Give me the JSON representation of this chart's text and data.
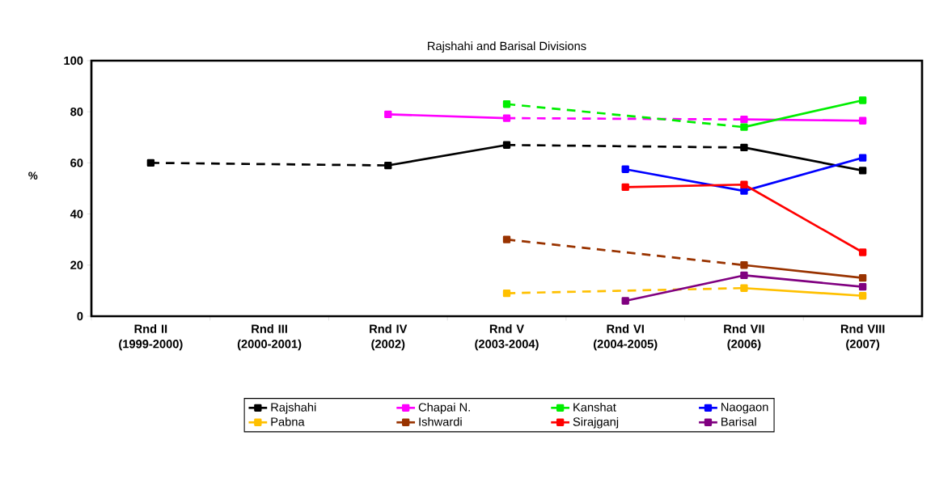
{
  "chart_data": {
    "type": "line",
    "title": "Rajshahi and Barisal Divisions",
    "ylabel": "%",
    "categories": [
      "Rnd II (1999-2000)",
      "Rnd III (2000-2001)",
      "Rnd IV (2002)",
      "Rnd V (2003-2004)",
      "Rnd VI (2004-2005)",
      "Rnd VII (2006)",
      "Rnd VIII (2007)"
    ],
    "ylim": [
      0,
      100
    ],
    "yticks": [
      0,
      20,
      40,
      60,
      80,
      100
    ],
    "grid": false,
    "legend": "bottom",
    "marker": "square",
    "series": [
      {
        "name": "Rajshahi",
        "color": "#000000",
        "values": [
          60,
          null,
          59,
          67,
          null,
          66,
          57
        ]
      },
      {
        "name": "Chapai N.",
        "color": "#ff00ff",
        "values": [
          null,
          null,
          79,
          77.5,
          null,
          77,
          76.5
        ]
      },
      {
        "name": "Kanshat",
        "color": "#00ee00",
        "values": [
          null,
          null,
          null,
          83,
          null,
          74,
          84.5
        ]
      },
      {
        "name": "Naogaon",
        "color": "#0000ff",
        "values": [
          null,
          null,
          null,
          null,
          57.5,
          49,
          62
        ]
      },
      {
        "name": "Pabna",
        "color": "#ffc000",
        "values": [
          null,
          null,
          null,
          9,
          null,
          11,
          8
        ]
      },
      {
        "name": "Ishwardi",
        "color": "#993300",
        "values": [
          null,
          null,
          null,
          30,
          null,
          20,
          15
        ]
      },
      {
        "name": "Sirajganj",
        "color": "#ff0000",
        "values": [
          null,
          null,
          null,
          null,
          50.5,
          51.5,
          25
        ]
      },
      {
        "name": "Barisal",
        "color": "#800080",
        "values": [
          null,
          null,
          null,
          null,
          6,
          16,
          11.5
        ]
      }
    ]
  }
}
